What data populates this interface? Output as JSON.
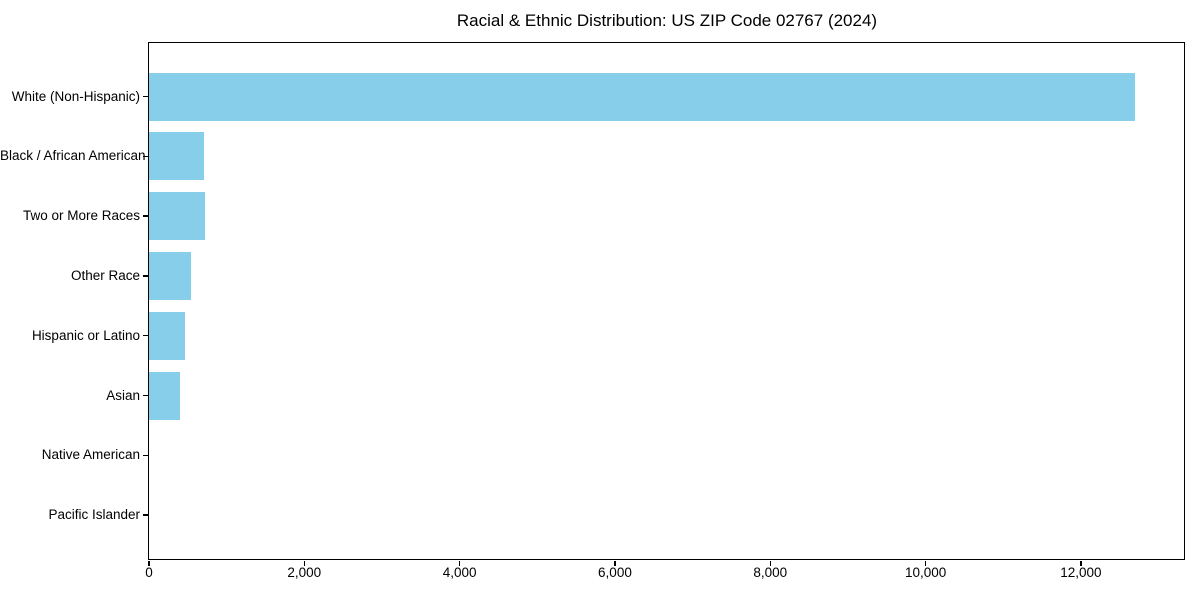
{
  "page": {
    "background_color": "#ffffff",
    "text_color": "#000000"
  },
  "chart_data": {
    "type": "bar",
    "orientation": "horizontal",
    "title": "Racial & Ethnic Distribution: US ZIP Code 02767 (2024)",
    "categories": [
      "White (Non-Hispanic)",
      "Black / African American",
      "Two or More Races",
      "Other Race",
      "Hispanic or Latino",
      "Asian",
      "Native American",
      "Pacific Islander"
    ],
    "values": [
      12700,
      710,
      720,
      545,
      465,
      400,
      0,
      0
    ],
    "xlabel": "",
    "ylabel": "",
    "xlim": [
      0,
      13340
    ],
    "xticks": [
      0,
      2000,
      4000,
      6000,
      8000,
      10000,
      12000
    ],
    "xtick_labels": [
      "0",
      "2,000",
      "4,000",
      "6,000",
      "8,000",
      "10,000",
      "12,000"
    ],
    "bar_color": "#87CEEB",
    "axis_color": "#000000",
    "grid": false,
    "legend": null
  }
}
